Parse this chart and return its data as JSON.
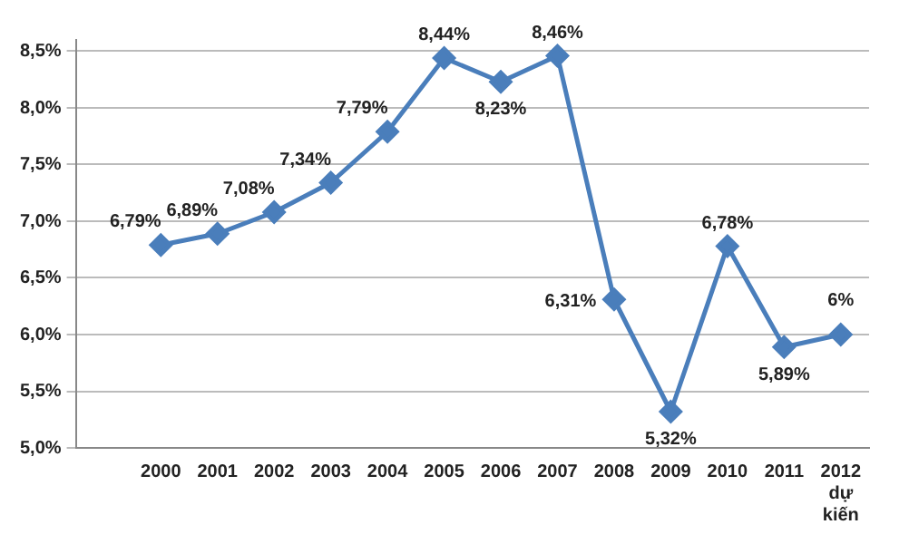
{
  "chart_data": {
    "type": "line",
    "categories": [
      null,
      "2000",
      "2001",
      "2002",
      "2003",
      "2004",
      "2005",
      "2006",
      "2007",
      "2008",
      "2009",
      "2010",
      "2011",
      "2012 dự kiến"
    ],
    "series": [
      {
        "color": "#4a7ebb",
        "values": [
          null,
          6.79,
          6.89,
          7.08,
          7.34,
          7.79,
          8.44,
          8.23,
          8.46,
          6.31,
          5.32,
          6.78,
          5.89,
          6.0
        ],
        "value_labels": [
          null,
          "6,79%",
          "6,89%",
          "7,08%",
          "7,34%",
          "7,79%",
          "8,44%",
          "8,23%",
          "8,46%",
          "6,31%",
          "5,32%",
          "6,78%",
          "5,89%",
          "6%"
        ]
      }
    ],
    "ylim": [
      5.0,
      8.6
    ],
    "yticks": [
      {
        "value": 5.0,
        "label": "5,0%"
      },
      {
        "value": 5.5,
        "label": "5,5%"
      },
      {
        "value": 6.0,
        "label": "6,0%"
      },
      {
        "value": 6.5,
        "label": "6,5%"
      },
      {
        "value": 7.0,
        "label": "7,0%"
      },
      {
        "value": 7.5,
        "label": "7,5%"
      },
      {
        "value": 8.0,
        "label": "8,0%"
      },
      {
        "value": 8.5,
        "label": "8,5%"
      }
    ],
    "grid": "y",
    "marker": "diamond",
    "line_style": "solid",
    "legend": false
  }
}
